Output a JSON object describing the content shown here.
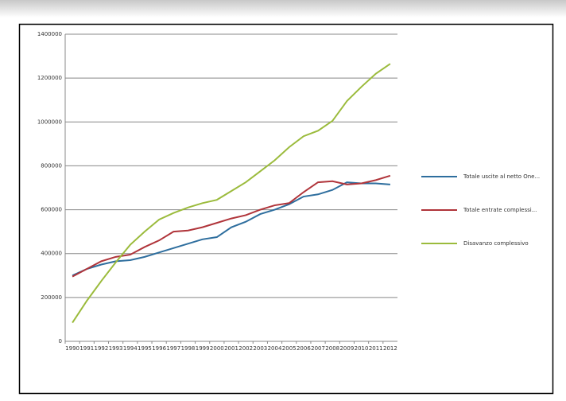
{
  "chart_data": {
    "type": "line",
    "categories": [
      "1990",
      "1991",
      "1992",
      "1993",
      "1994",
      "1995",
      "1996",
      "1997",
      "1998",
      "1999",
      "2000",
      "2001",
      "2002",
      "2003",
      "2004",
      "2005",
      "2006",
      "2007",
      "2008",
      "2009",
      "2010",
      "2011",
      "2012"
    ],
    "series": [
      {
        "name": "Totale uscite al netto One...",
        "color": "#2e6e9e",
        "values": [
          300000,
          330000,
          350000,
          365000,
          370000,
          385000,
          405000,
          425000,
          445000,
          465000,
          475000,
          520000,
          545000,
          580000,
          600000,
          625000,
          660000,
          670000,
          690000,
          725000,
          720000,
          720000,
          715000
        ]
      },
      {
        "name": "Totale entrate complessi...",
        "color": "#b0343a",
        "values": [
          295000,
          330000,
          365000,
          385000,
          395000,
          430000,
          460000,
          500000,
          505000,
          520000,
          540000,
          560000,
          575000,
          600000,
          620000,
          630000,
          680000,
          725000,
          730000,
          715000,
          720000,
          735000,
          755000
        ]
      },
      {
        "name": "Disavanzo complessivo",
        "color": "#9bbb3c",
        "values": [
          85000,
          185000,
          275000,
          360000,
          440000,
          500000,
          555000,
          585000,
          610000,
          630000,
          645000,
          685000,
          725000,
          775000,
          825000,
          885000,
          935000,
          960000,
          1005000,
          1095000,
          1160000,
          1220000,
          1265000
        ]
      }
    ],
    "ylim": [
      0,
      1400000
    ],
    "yticks": [
      0,
      200000,
      400000,
      600000,
      800000,
      1000000,
      1200000,
      1400000
    ],
    "grid": true,
    "legend": "right"
  }
}
